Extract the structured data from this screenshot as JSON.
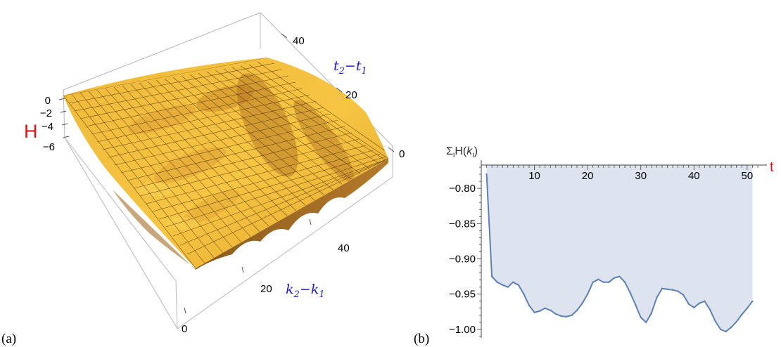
{
  "panel_a": {
    "label": "(a)",
    "axis_h_label": "H",
    "axis_t_label": "t",
    "axis_t_sub_2": "2",
    "axis_t_sub_1": "1",
    "axis_k_label": "k",
    "axis_k_sub_2": "2",
    "axis_k_sub_1": "1",
    "h_ticks": [
      "0",
      "−2",
      "−4",
      "−6"
    ],
    "t_ticks": [
      "0",
      "20",
      "40"
    ],
    "k_ticks": [
      "0",
      "20",
      "40"
    ]
  },
  "panel_b": {
    "label": "(b)"
  },
  "chart_data": [
    {
      "type": "surface",
      "xlabel": "k2−k1",
      "ylabel": "t2−t1",
      "zlabel": "H",
      "xlim": [
        0,
        52
      ],
      "ylim": [
        0,
        52
      ],
      "zlim": [
        -7,
        0
      ],
      "colors": {
        "surface_light": "#f6c33a",
        "surface_dark": "#b9741c",
        "mesh": "#2a1a08"
      }
    },
    {
      "type": "area",
      "title": "ΣiH(ki)",
      "xlabel": "t",
      "x": [
        1,
        2,
        3,
        4,
        5,
        6,
        7,
        8,
        9,
        10,
        11,
        12,
        13,
        14,
        15,
        16,
        17,
        18,
        19,
        20,
        21,
        22,
        23,
        24,
        25,
        26,
        27,
        28,
        29,
        30,
        31,
        32,
        33,
        34,
        35,
        36,
        37,
        38,
        39,
        40,
        41,
        42,
        43,
        44,
        45,
        46,
        47,
        48,
        49,
        50,
        51
      ],
      "values": [
        -0.78,
        -0.925,
        -0.933,
        -0.937,
        -0.94,
        -0.933,
        -0.937,
        -0.95,
        -0.966,
        -0.976,
        -0.974,
        -0.97,
        -0.973,
        -0.978,
        -0.981,
        -0.982,
        -0.98,
        -0.973,
        -0.963,
        -0.95,
        -0.933,
        -0.929,
        -0.933,
        -0.933,
        -0.927,
        -0.925,
        -0.933,
        -0.948,
        -0.965,
        -0.983,
        -0.99,
        -0.977,
        -0.955,
        -0.942,
        -0.943,
        -0.944,
        -0.946,
        -0.951,
        -0.964,
        -0.969,
        -0.963,
        -0.96,
        -0.972,
        -0.988,
        -1.0,
        -1.003,
        -0.997,
        -0.989,
        -0.979,
        -0.97,
        -0.96
      ],
      "xticks": [
        10,
        20,
        30,
        40,
        50
      ],
      "yticks": [
        -0.8,
        -0.85,
        -0.9,
        -0.95,
        -1.0
      ],
      "ytick_labels": [
        "−0.80",
        "−0.85",
        "−0.90",
        "−0.95",
        "−1.00"
      ],
      "xlim": [
        0,
        52
      ],
      "ylim": [
        -1.012,
        -0.765
      ],
      "colors": {
        "line": "#5e81b5",
        "fill": "#dde3ef",
        "axis_label_t": "#e0141b"
      }
    }
  ]
}
